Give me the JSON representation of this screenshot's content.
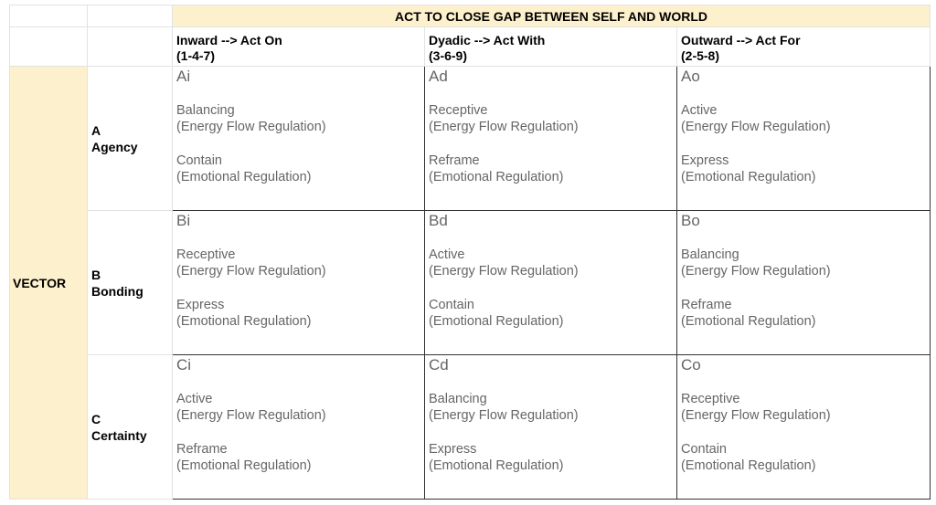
{
  "title": "ACT TO CLOSE GAP BETWEEN SELF AND WORLD",
  "columns": [
    {
      "line1": "Inward --> Act On",
      "line2": "(1-4-7)"
    },
    {
      "line1": "Dyadic --> Act With",
      "line2": "(3-6-9)"
    },
    {
      "line1": "Outward --> Act For",
      "line2": "(2-5-8)"
    }
  ],
  "vector_label": "VECTOR",
  "rows": [
    {
      "letter": "A",
      "name": "Agency",
      "cells": [
        {
          "code": "Ai",
          "energy": "Balancing",
          "energy_sub": "(Energy Flow Regulation)",
          "emotion": "Contain",
          "emotion_sub": "(Emotional Regulation)"
        },
        {
          "code": "Ad",
          "energy": "Receptive",
          "energy_sub": "(Energy Flow Regulation)",
          "emotion": "Reframe",
          "emotion_sub": "(Emotional Regulation)"
        },
        {
          "code": "Ao",
          "energy": "Active",
          "energy_sub": "(Energy Flow Regulation)",
          "emotion": "Express",
          "emotion_sub": "(Emotional Regulation)"
        }
      ]
    },
    {
      "letter": "B",
      "name": "Bonding",
      "cells": [
        {
          "code": "Bi",
          "energy": "Receptive",
          "energy_sub": "(Energy Flow Regulation)",
          "emotion": "Express",
          "emotion_sub": "(Emotional Regulation)"
        },
        {
          "code": "Bd",
          "energy": "Active",
          "energy_sub": "(Energy Flow Regulation)",
          "emotion": "Contain",
          "emotion_sub": "(Emotional Regulation)"
        },
        {
          "code": "Bo",
          "energy": "Balancing",
          "energy_sub": "(Energy Flow Regulation)",
          "emotion": "Reframe",
          "emotion_sub": "(Emotional Regulation)"
        }
      ]
    },
    {
      "letter": "C",
      "name": "Certainty",
      "cells": [
        {
          "code": "Ci",
          "energy": "Active",
          "energy_sub": "(Energy Flow Regulation)",
          "emotion": "Reframe",
          "emotion_sub": "(Emotional Regulation)"
        },
        {
          "code": "Cd",
          "energy": "Balancing",
          "energy_sub": "(Energy Flow Regulation)",
          "emotion": "Express",
          "emotion_sub": "(Emotional Regulation)"
        },
        {
          "code": "Co",
          "energy": "Receptive",
          "energy_sub": "(Energy Flow Regulation)",
          "emotion": "Contain",
          "emotion_sub": "(Emotional Regulation)"
        }
      ]
    }
  ],
  "colors": {
    "header_fill": "#fdf0cd",
    "cell_text": "#666666",
    "grid_line": "#e2e2e2",
    "table_border": "#333333"
  }
}
